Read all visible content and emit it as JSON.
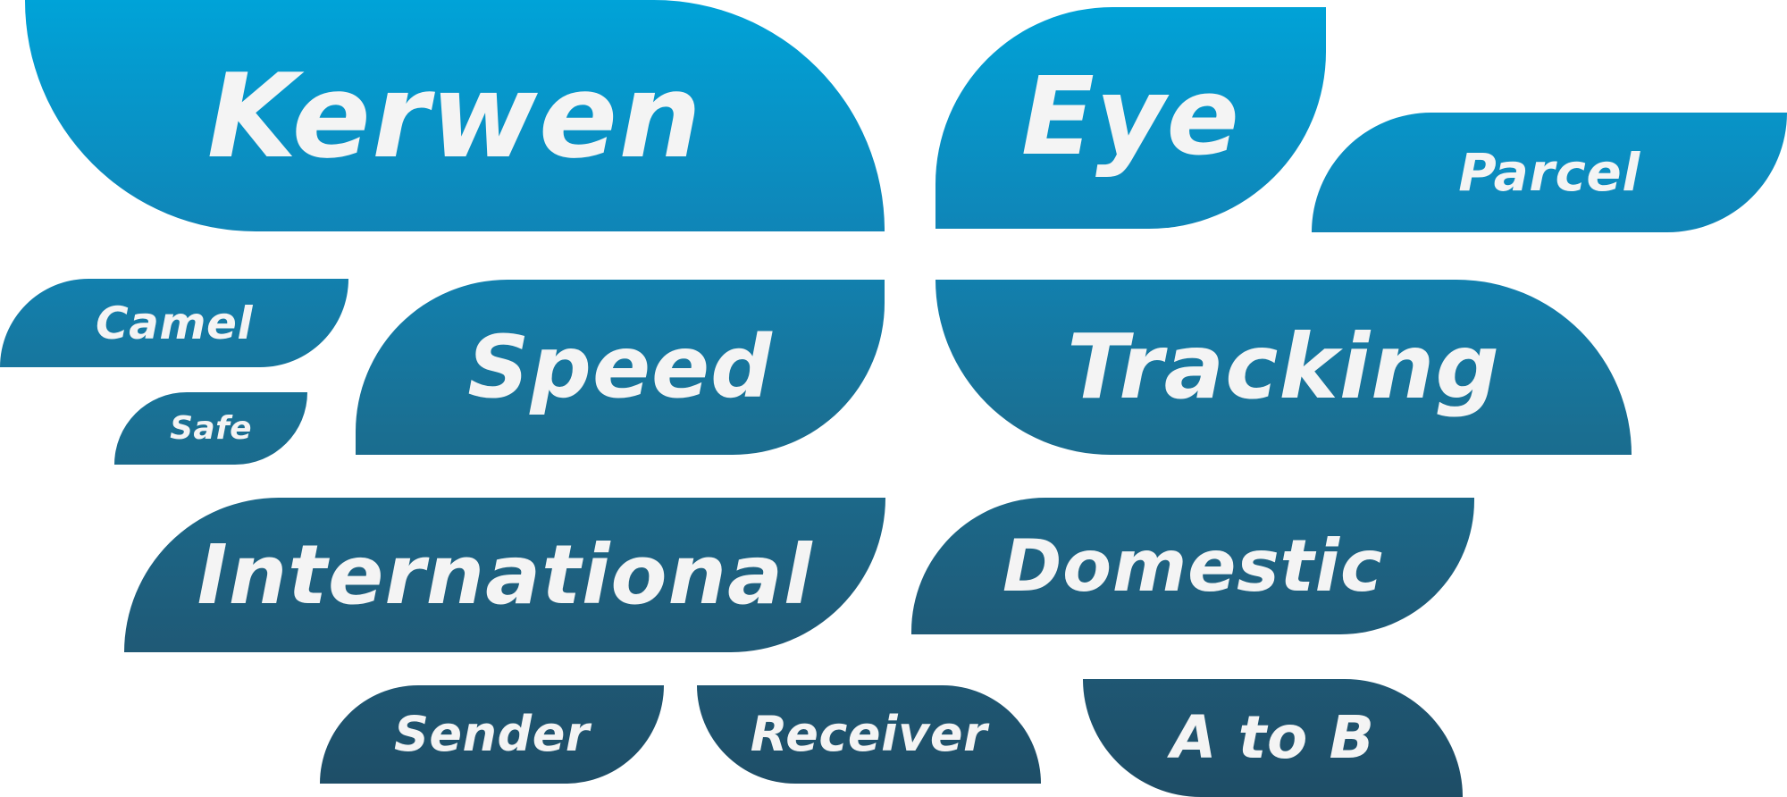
{
  "tiles": {
    "kerwen": "Kerwen",
    "eye": "Eye",
    "parcel": "Parcel",
    "camel": "Camel",
    "safe": "Safe",
    "speed": "Speed",
    "tracking": "Tracking",
    "international": "International",
    "domestic": "Domestic",
    "sender": "Sender",
    "receiver": "Receiver",
    "atob": "A to B"
  },
  "colors": {
    "gradient_top": "#00a3d8",
    "gradient_bottom": "#1e4d66",
    "text": "#f4f4f4",
    "background": "#ffffff"
  }
}
